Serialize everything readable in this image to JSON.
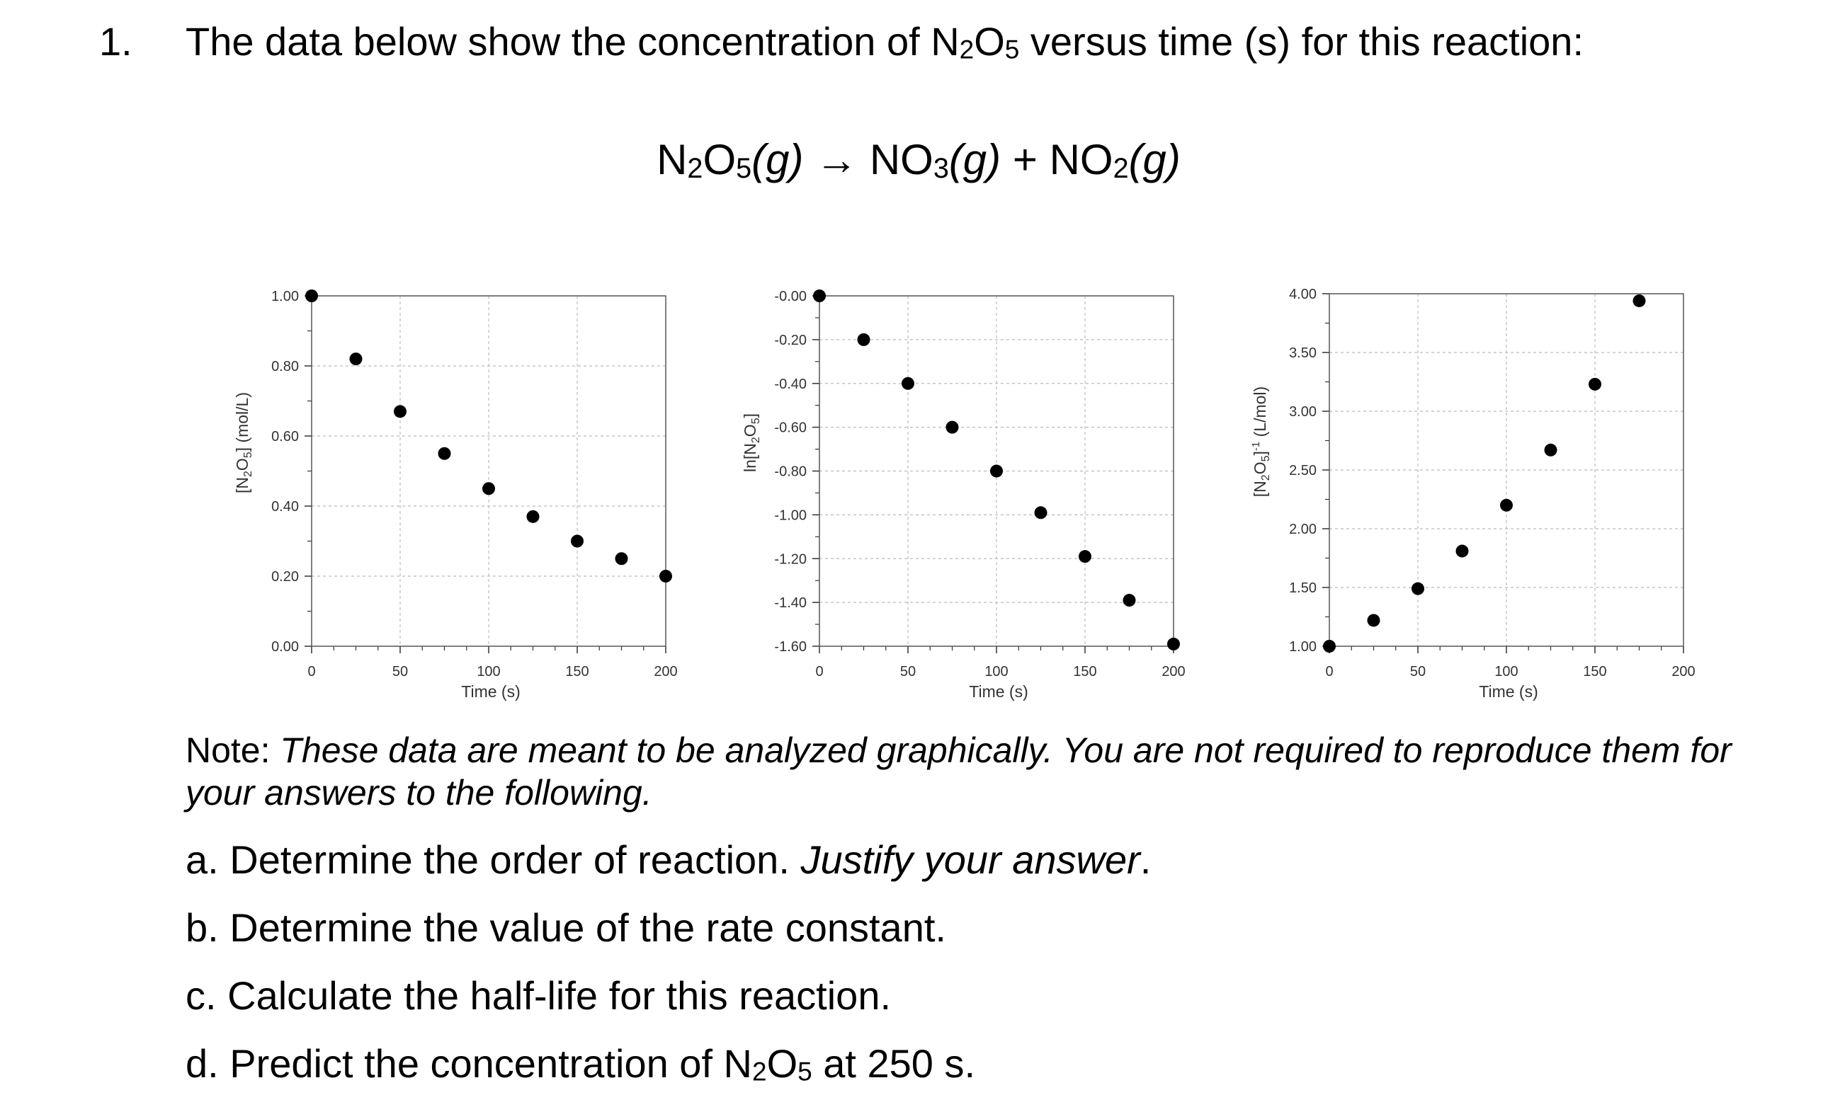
{
  "question": {
    "number": "1.",
    "prompt_pre": "The data below show the concentration of N",
    "prompt_sub1": "2",
    "prompt_o": "O",
    "prompt_sub2": "5",
    "prompt_post": " versus time (s) for this reaction:"
  },
  "equation": {
    "reactant": "N",
    "reactant_sub1": "2",
    "reactant_o": "O",
    "reactant_sub2": "5",
    "reactant_state": "(g)",
    "arrow": " → ",
    "product1": "NO",
    "product1_sub": "3",
    "product1_state": "(g)",
    "plus": " + ",
    "product2": "NO",
    "product2_sub": "2",
    "product2_state": "(g)"
  },
  "chart_data": [
    {
      "type": "scatter",
      "xlabel": "Time (s)",
      "ylabel": "[N2O5] (mol/L)",
      "ylabel_parts": {
        "pre": "[N",
        "sub1": "2",
        "mid": "O",
        "sub2": "5",
        "post": "] (mol/L)"
      },
      "xlim": [
        0,
        200
      ],
      "ylim": [
        0,
        1.0
      ],
      "xticks": [
        "0",
        "50",
        "100",
        "150",
        "200"
      ],
      "yticks": [
        "0.00",
        "0.20",
        "0.40",
        "0.60",
        "0.80",
        "1.00"
      ],
      "x": [
        0,
        25,
        50,
        75,
        100,
        125,
        150,
        175,
        200
      ],
      "y": [
        1.0,
        0.82,
        0.67,
        0.55,
        0.45,
        0.37,
        0.3,
        0.25,
        0.2
      ],
      "grid": true,
      "point_color": "#000000"
    },
    {
      "type": "scatter",
      "xlabel": "Time (s)",
      "ylabel": "ln[N2O5]",
      "ylabel_parts": {
        "pre": "ln[N",
        "sub1": "2",
        "mid": "O",
        "sub2": "5",
        "post": "]"
      },
      "xlim": [
        0,
        200
      ],
      "ylim": [
        -1.6,
        0
      ],
      "xticks": [
        "0",
        "50",
        "100",
        "150",
        "200"
      ],
      "yticks": [
        "-0.00",
        "-0.20",
        "-0.40",
        "-0.60",
        "-0.80",
        "-1.00",
        "-1.20",
        "-1.40",
        "-1.60"
      ],
      "x": [
        0,
        25,
        50,
        75,
        100,
        125,
        150,
        175,
        200
      ],
      "y": [
        0.0,
        -0.2,
        -0.4,
        -0.6,
        -0.8,
        -0.99,
        -1.19,
        -1.39,
        -1.59
      ],
      "grid": true,
      "point_color": "#000000"
    },
    {
      "type": "scatter",
      "xlabel": "Time (s)",
      "ylabel": "[N2O5]-1 (L/mol)",
      "ylabel_parts": {
        "pre": "[N",
        "sub1": "2",
        "mid": "O",
        "sub2": "5",
        "post": "]",
        "sup": "-1",
        "tail": " (L/mol)"
      },
      "xlim": [
        0,
        200
      ],
      "ylim": [
        1.0,
        4.0
      ],
      "xticks": [
        "0",
        "50",
        "100",
        "150",
        "200"
      ],
      "yticks": [
        "1.00",
        "1.50",
        "2.00",
        "2.50",
        "3.00",
        "3.50",
        "4.00"
      ],
      "x": [
        0,
        25,
        50,
        75,
        100,
        125,
        150,
        175
      ],
      "y": [
        1.0,
        1.22,
        1.49,
        1.81,
        2.2,
        2.67,
        3.23,
        3.94
      ],
      "grid": true,
      "point_color": "#000000"
    }
  ],
  "note": {
    "label": "Note: ",
    "text": "These data are meant to be analyzed graphically. You are not required to reproduce them for your answers to the following."
  },
  "parts": {
    "a_label": "a. ",
    "a_text": "Determine the order of reaction. ",
    "a_italic": "Justify your answer",
    "a_end": ".",
    "b_label": "b. ",
    "b_text": "Determine the value of the rate constant.",
    "c_label": "c. ",
    "c_text": "Calculate the half-life for this reaction.",
    "d_label": "d. ",
    "d_pre": "Predict the concentration of N",
    "d_sub1": "2",
    "d_o": "O",
    "d_sub2": "5",
    "d_post": " at 250 s."
  }
}
